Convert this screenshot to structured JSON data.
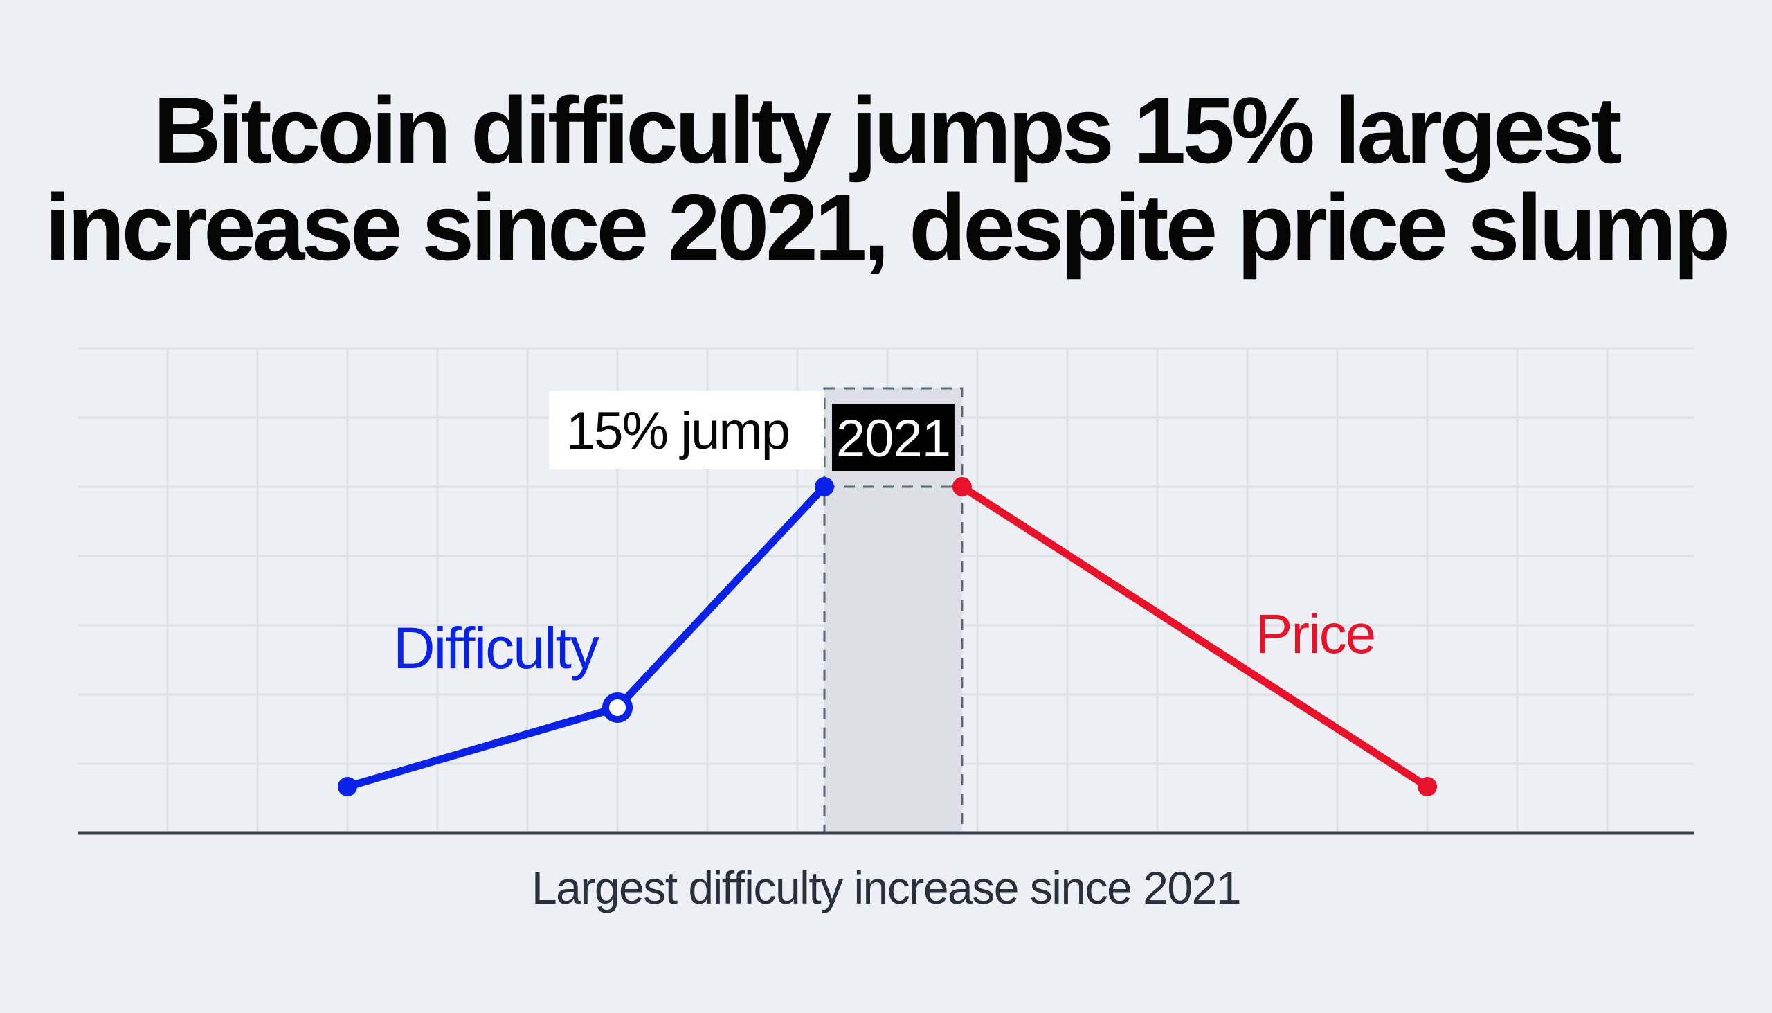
{
  "title": {
    "line1": "Bitcoin difficulty jumps 15% largest",
    "line2": "increase since 2021, despite price slump"
  },
  "caption": "Largest difficulty increase since 2021",
  "chart_data": {
    "type": "line",
    "title": "Bitcoin difficulty jumps 15% largest increase since 2021, despite price slump",
    "xlabel": "Largest difficulty increase since 2021",
    "ylabel": "",
    "grid": true,
    "xlim": [
      0,
      18
    ],
    "ylim": [
      0,
      7
    ],
    "series": [
      {
        "name": "Difficulty",
        "color": "#0a22e6",
        "points": [
          {
            "x": 3,
            "y": 0.67,
            "marker": "filled"
          },
          {
            "x": 6,
            "y": 1.81,
            "marker": "hollow"
          },
          {
            "x": 8.3,
            "y": 5.0,
            "marker": "filled"
          }
        ]
      },
      {
        "name": "Price",
        "color": "#e8132a",
        "points": [
          {
            "x": 9.83,
            "y": 5.0,
            "marker": "filled"
          },
          {
            "x": 15,
            "y": 0.67,
            "marker": "filled"
          }
        ]
      }
    ],
    "highlight": {
      "label": "2021",
      "x_range": [
        8.3,
        9.83
      ],
      "y_top": 6.42
    },
    "annotations": [
      {
        "text": "15% jump",
        "style": "white-box"
      },
      {
        "text": "2021",
        "style": "black-box"
      }
    ],
    "series_labels": [
      {
        "text": "Difficulty",
        "series": "Difficulty"
      },
      {
        "text": "Price",
        "series": "Price"
      }
    ]
  }
}
